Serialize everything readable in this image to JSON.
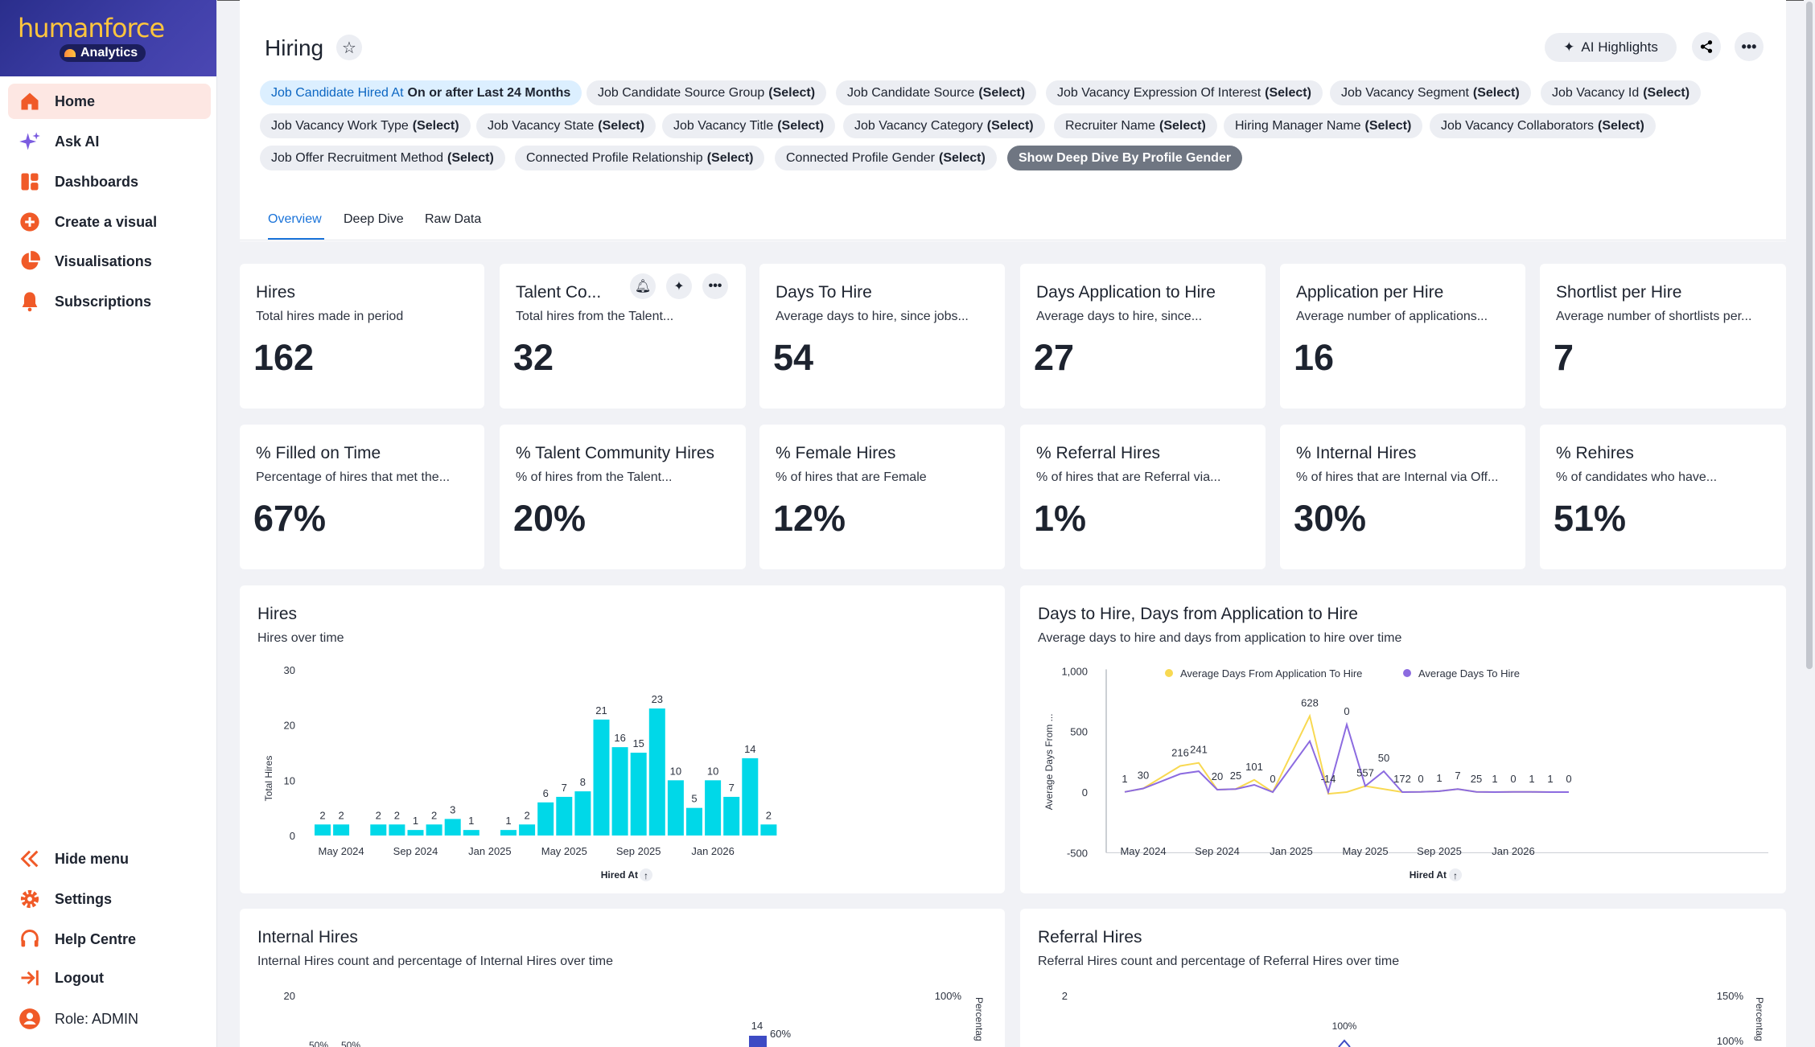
{
  "brand": {
    "name": "humanforce",
    "badge": "Analytics",
    "brand_color": "#ffc53d"
  },
  "sidebar": {
    "items": [
      {
        "label": "Home",
        "icon": "home-icon"
      },
      {
        "label": "Ask AI",
        "icon": "sparkle-icon"
      },
      {
        "label": "Dashboards",
        "icon": "dashboard-icon"
      },
      {
        "label": "Create a visual",
        "icon": "plus-circle-icon"
      },
      {
        "label": "Visualisations",
        "icon": "pie-icon"
      },
      {
        "label": "Subscriptions",
        "icon": "bell-icon"
      }
    ],
    "bottom": [
      {
        "label": "Hide menu",
        "icon": "double-chevron-left-icon"
      },
      {
        "label": "Settings",
        "icon": "gear-icon"
      },
      {
        "label": "Help Centre",
        "icon": "headset-icon"
      },
      {
        "label": "Logout",
        "icon": "logout-icon"
      },
      {
        "label": "Role: ADMIN",
        "icon": "user-icon"
      }
    ],
    "accent": "#f05a28"
  },
  "header": {
    "title": "Hiring",
    "ai_highlights": "AI Highlights"
  },
  "filters": [
    {
      "name": "Job Candidate Hired At",
      "value": "On or after Last 24 Months"
    },
    {
      "name": "Job Candidate Source Group",
      "value": "(Select)"
    },
    {
      "name": "Job Candidate Source",
      "value": "(Select)"
    },
    {
      "name": "Job Vacancy Expression Of Interest",
      "value": "(Select)"
    },
    {
      "name": "Job Vacancy Segment",
      "value": "(Select)"
    },
    {
      "name": "Job Vacancy Id",
      "value": "(Select)"
    },
    {
      "name": "Job Vacancy Work Type",
      "value": "(Select)"
    },
    {
      "name": "Job Vacancy State",
      "value": "(Select)"
    },
    {
      "name": "Job Vacancy Title",
      "value": "(Select)"
    },
    {
      "name": "Job Vacancy Category",
      "value": "(Select)"
    },
    {
      "name": "Recruiter Name",
      "value": "(Select)"
    },
    {
      "name": "Hiring Manager Name",
      "value": "(Select)"
    },
    {
      "name": "Job Vacancy Collaborators",
      "value": "(Select)"
    },
    {
      "name": "Job Offer Recruitment Method",
      "value": "(Select)"
    },
    {
      "name": "Connected Profile Relationship",
      "value": "(Select)"
    },
    {
      "name": "Connected Profile Gender",
      "value": "(Select)"
    },
    {
      "name": "Show Deep Dive By Profile Gender",
      "value": ""
    }
  ],
  "tabs": [
    "Overview",
    "Deep Dive",
    "Raw Data"
  ],
  "kpis": [
    {
      "title": "Hires",
      "subtitle": "Total hires made in period",
      "value": "162"
    },
    {
      "title": "Talent Co...",
      "subtitle": "Total hires from the Talent...",
      "value": "32"
    },
    {
      "title": "Days To Hire",
      "subtitle": "Average days to hire, since jobs...",
      "value": "54"
    },
    {
      "title": "Days Application to Hire",
      "subtitle": "Average days to hire, since...",
      "value": "27"
    },
    {
      "title": "Application per Hire",
      "subtitle": "Average number of applications...",
      "value": "16"
    },
    {
      "title": "Shortlist per Hire",
      "subtitle": "Average number of shortlists per...",
      "value": "7"
    },
    {
      "title": "% Filled on Time",
      "subtitle": "Percentage of hires that met the...",
      "value": "67%"
    },
    {
      "title": "% Talent Community Hires",
      "subtitle": "% of hires from the Talent...",
      "value": "20%"
    },
    {
      "title": "% Female Hires",
      "subtitle": "% of hires that are Female",
      "value": "12%"
    },
    {
      "title": "% Referral Hires",
      "subtitle": "% of hires that are Referral via...",
      "value": "1%"
    },
    {
      "title": "% Internal Hires",
      "subtitle": "% of hires that are Internal via Off...",
      "value": "30%"
    },
    {
      "title": "% Rehires",
      "subtitle": "% of candidates who have...",
      "value": "51%"
    }
  ],
  "charts": {
    "hires": {
      "title": "Hires",
      "subtitle": "Hires over time"
    },
    "days": {
      "title": "Days to Hire, Days from Application to Hire",
      "subtitle": "Average days to hire and days from application to hire over time"
    },
    "internal": {
      "title": "Internal Hires",
      "subtitle": "Internal Hires count and percentage of Internal Hires over time"
    },
    "referral": {
      "title": "Referral Hires",
      "subtitle": "Referral Hires count and percentage of Referral Hires over time"
    }
  },
  "chart_data": [
    {
      "type": "bar",
      "title": "Hires",
      "xlabel": "Hired At",
      "ylabel": "Total Hires",
      "ylim": [
        0,
        30
      ],
      "yticks": [
        "0",
        "10",
        "20",
        "30"
      ],
      "xtick_labels": [
        "May 2024",
        "Sep 2024",
        "Jan 2025",
        "May 2025",
        "Sep 2025",
        "Jan 2026"
      ],
      "values": [
        2,
        2,
        null,
        2,
        2,
        1,
        2,
        3,
        1,
        null,
        1,
        2,
        6,
        7,
        8,
        21,
        16,
        15,
        23,
        10,
        5,
        10,
        7,
        14,
        2
      ],
      "color": "#00d8e8"
    },
    {
      "type": "line",
      "title": "Days to Hire, Days from Application to Hire",
      "xlabel": "Hired At",
      "ylabel": "Average Days From ...",
      "ylim": [
        -500,
        1000
      ],
      "yticks": [
        "-500",
        "0",
        "500",
        "1,000"
      ],
      "xtick_labels": [
        "May 2024",
        "Sep 2024",
        "Jan 2025",
        "May 2025",
        "Sep 2025",
        "Jan 2026"
      ],
      "series": [
        {
          "name": "Average Days From Application To Hire",
          "color": "#f8d952",
          "values": [
            1,
            30,
            null,
            216,
            241,
            20,
            25,
            101,
            0,
            null,
            628,
            -14,
            0,
            50,
            null,
            0,
            1,
            7,
            25,
            1,
            0,
            1,
            1,
            0,
            0
          ]
        },
        {
          "name": "Average Days To Hire",
          "color": "#8c6be0",
          "values": [
            1,
            30,
            null,
            150,
            172,
            20,
            25,
            60,
            0,
            null,
            420,
            0,
            557,
            50,
            172,
            0,
            1,
            7,
            25,
            1,
            0,
            1,
            1,
            0,
            0
          ]
        }
      ],
      "data_labels": [
        "1",
        "30",
        "216",
        "241",
        "20",
        "25",
        "101",
        "0",
        "628",
        "-14",
        "0",
        "557",
        "50",
        "172",
        "0",
        "1",
        "7",
        "25",
        "1",
        "0",
        "1",
        "1",
        "0",
        "0"
      ]
    },
    {
      "type": "bar",
      "title": "Internal Hires",
      "ylabels_left": [
        "20"
      ],
      "ylabels_right": [
        "100%"
      ],
      "ylabel_right": "Percentag",
      "visible_labels": [
        "50%",
        "50%",
        "14",
        "60%"
      ]
    },
    {
      "type": "line",
      "title": "Referral Hires",
      "ylabels_left": [
        "2"
      ],
      "ylabels_right": [
        "150%",
        "100%"
      ],
      "ylabel_right": "Percentag",
      "visible_labels": [
        "100%"
      ]
    }
  ]
}
